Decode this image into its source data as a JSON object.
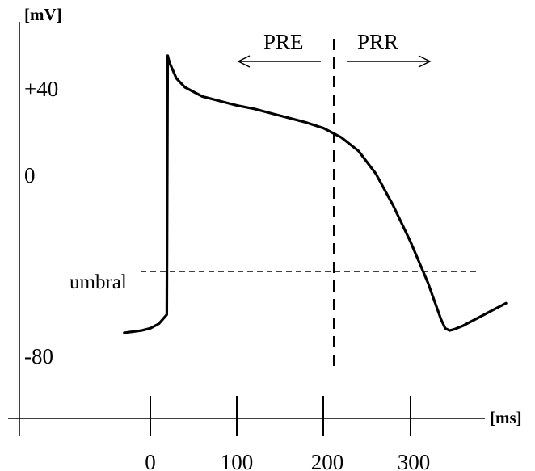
{
  "chart_data": {
    "type": "line",
    "ylabel": "[mV]",
    "xlabel": "[ms]",
    "x_ticks": [
      "0",
      "100",
      "200",
      "300"
    ],
    "y_ticks": [
      "+40",
      "0",
      "-80"
    ],
    "threshold_label": "umbral",
    "marker_left_label": "PRE",
    "marker_right_label": "PRR",
    "marker_x": 210,
    "threshold_y": -45,
    "series": [
      {
        "x": [
          -30,
          -20,
          -10,
          0,
          10,
          19,
          20,
          22,
          30,
          40,
          60,
          80,
          100,
          120,
          140,
          160,
          180,
          200,
          210,
          220,
          240,
          260,
          280,
          300,
          320,
          335,
          340,
          345,
          350,
          360,
          370,
          380,
          390,
          400,
          410
        ],
        "y": [
          -70,
          -69.5,
          -69,
          -68,
          -66,
          -62,
          52,
          49,
          42,
          38,
          34,
          32,
          30,
          28.5,
          26.5,
          24.5,
          22.5,
          20,
          18,
          16,
          10,
          0,
          -14,
          -30,
          -48,
          -64,
          -68,
          -69,
          -68.5,
          -67,
          -65,
          -63,
          -61,
          -59,
          -57
        ]
      }
    ]
  }
}
